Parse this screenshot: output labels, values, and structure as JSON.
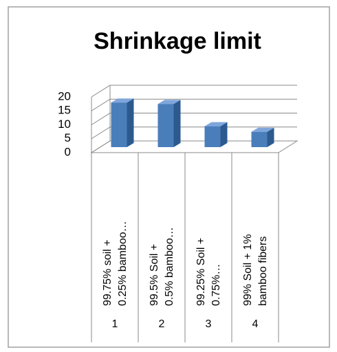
{
  "chart_data": {
    "type": "bar3d",
    "title": "Shrinkage limit",
    "categories": [
      "99.75% soil + 0.25% bamboo…",
      "99.5% Soil + 0.5%  bamboo…",
      "99.25% Soil + 0.75%…",
      "99% Soil + 1% bamboo fibers"
    ],
    "category_numbers": [
      "1",
      "2",
      "3",
      "4"
    ],
    "values": [
      16,
      15.5,
      7.5,
      5.5
    ],
    "color": "#4a7ebb",
    "ylim": [
      0,
      20
    ],
    "yticks": [
      0,
      5,
      10,
      15,
      20
    ],
    "grid": true
  }
}
